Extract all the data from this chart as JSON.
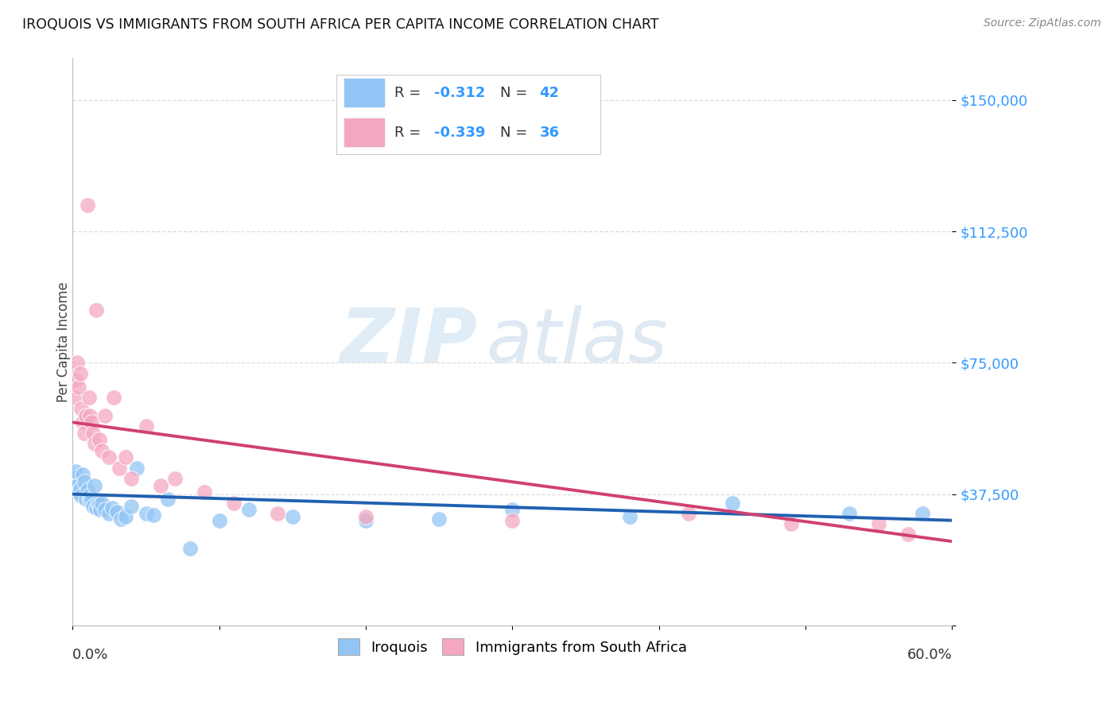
{
  "title": "IROQUOIS VS IMMIGRANTS FROM SOUTH AFRICA PER CAPITA INCOME CORRELATION CHART",
  "source": "Source: ZipAtlas.com",
  "ylabel": "Per Capita Income",
  "yticks": [
    0,
    37500,
    75000,
    112500,
    150000
  ],
  "ytick_labels": [
    "",
    "$37,500",
    "$75,000",
    "$112,500",
    "$150,000"
  ],
  "xlim": [
    0.0,
    0.6
  ],
  "ylim": [
    0,
    162000
  ],
  "watermark_zip": "ZIP",
  "watermark_atlas": "atlas",
  "blue_color": "#92c5f5",
  "pink_color": "#f4a8c0",
  "trend_blue": "#2060b0",
  "trend_pink": "#d04070",
  "blue_scatter_x": [
    0.001,
    0.002,
    0.003,
    0.004,
    0.005,
    0.006,
    0.007,
    0.008,
    0.009,
    0.01,
    0.011,
    0.012,
    0.013,
    0.014,
    0.015,
    0.016,
    0.017,
    0.018,
    0.019,
    0.02,
    0.022,
    0.025,
    0.027,
    0.03,
    0.033,
    0.036,
    0.04,
    0.044,
    0.05,
    0.055,
    0.065,
    0.08,
    0.1,
    0.12,
    0.15,
    0.2,
    0.25,
    0.3,
    0.38,
    0.45,
    0.53,
    0.58
  ],
  "blue_scatter_y": [
    42000,
    44000,
    40000,
    38000,
    39000,
    37000,
    43000,
    41000,
    36000,
    38500,
    37000,
    35500,
    36000,
    34000,
    40000,
    33500,
    35000,
    34500,
    33000,
    35000,
    33000,
    32000,
    33500,
    32500,
    30500,
    31000,
    34000,
    45000,
    32000,
    31500,
    36000,
    22000,
    30000,
    33000,
    31000,
    30000,
    30500,
    33000,
    31000,
    35000,
    32000,
    32000
  ],
  "pink_scatter_x": [
    0.001,
    0.002,
    0.003,
    0.004,
    0.005,
    0.006,
    0.007,
    0.008,
    0.009,
    0.01,
    0.011,
    0.012,
    0.013,
    0.014,
    0.015,
    0.016,
    0.018,
    0.02,
    0.022,
    0.025,
    0.028,
    0.032,
    0.036,
    0.04,
    0.05,
    0.06,
    0.07,
    0.09,
    0.11,
    0.14,
    0.2,
    0.3,
    0.42,
    0.49,
    0.55,
    0.57
  ],
  "pink_scatter_y": [
    65000,
    70000,
    75000,
    68000,
    72000,
    62000,
    58000,
    55000,
    60000,
    120000,
    65000,
    60000,
    58000,
    55000,
    52000,
    90000,
    53000,
    50000,
    60000,
    48000,
    65000,
    45000,
    48000,
    42000,
    57000,
    40000,
    42000,
    38000,
    35000,
    32000,
    31000,
    30000,
    32000,
    29000,
    29000,
    26000
  ],
  "blue_trend_x": [
    0.0,
    0.6
  ],
  "blue_trend_y": [
    37500,
    30000
  ],
  "pink_trend_x": [
    0.0,
    0.6
  ],
  "pink_trend_y": [
    58000,
    24000
  ],
  "background_color": "#ffffff",
  "grid_color": "#dddddd",
  "legend_blue_r": "-0.312",
  "legend_blue_n": "42",
  "legend_pink_r": "-0.339",
  "legend_pink_n": "36"
}
